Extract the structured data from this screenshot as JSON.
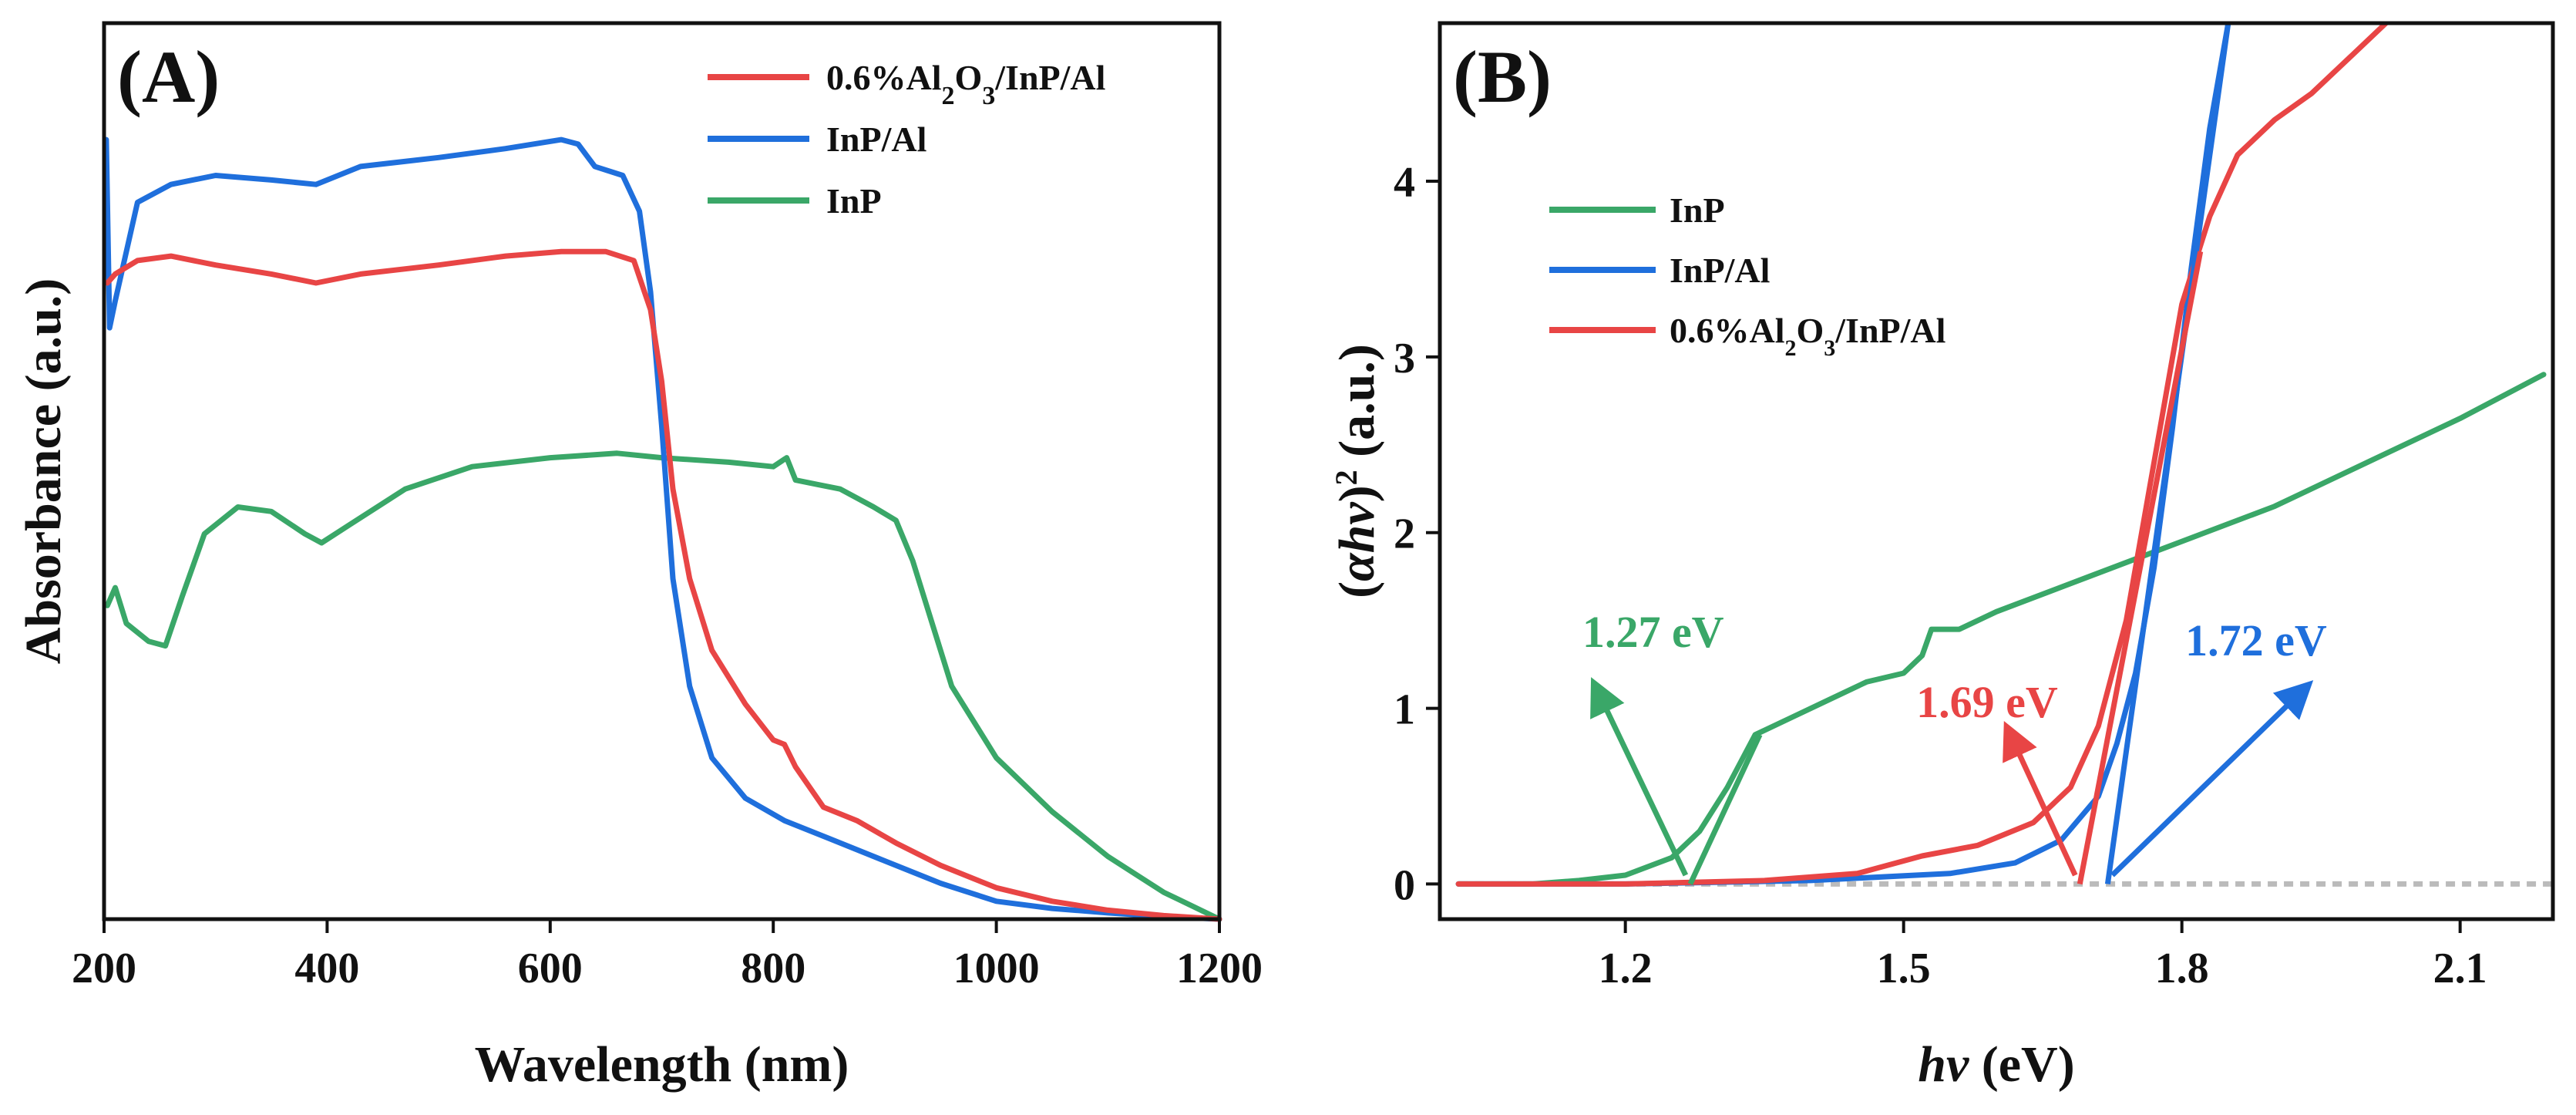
{
  "chart_data": [
    {
      "panel_label": "(A)",
      "type": "line",
      "xlabel": "Wavelength (nm)",
      "ylabel": "Absorbance (a.u.)",
      "xlim": [
        200,
        1200
      ],
      "ylim": [
        0,
        10
      ],
      "xticks": [
        200,
        400,
        600,
        800,
        1000,
        1200
      ],
      "yticks": [],
      "legend_position": "top-right",
      "series": [
        {
          "name": "0.6%Al2O3/InP/Al",
          "legend_html": "0.6%Al<tspan baseline-shift=\"sub\" font-size=\"34\">2</tspan>O<tspan baseline-shift=\"sub\" font-size=\"34\">3</tspan>/InP/Al",
          "color": "#e84545",
          "points": [
            [
              203,
              7.1
            ],
            [
              210,
              7.2
            ],
            [
              230,
              7.35
            ],
            [
              260,
              7.4
            ],
            [
              300,
              7.3
            ],
            [
              350,
              7.2
            ],
            [
              390,
              7.1
            ],
            [
              430,
              7.2
            ],
            [
              500,
              7.3
            ],
            [
              560,
              7.4
            ],
            [
              610,
              7.45
            ],
            [
              650,
              7.45
            ],
            [
              675,
              7.35
            ],
            [
              690,
              6.8
            ],
            [
              700,
              6.0
            ],
            [
              710,
              4.8
            ],
            [
              725,
              3.8
            ],
            [
              745,
              3.0
            ],
            [
              775,
              2.4
            ],
            [
              800,
              2.0
            ],
            [
              810,
              1.95
            ],
            [
              820,
              1.7
            ],
            [
              845,
              1.25
            ],
            [
              875,
              1.1
            ],
            [
              910,
              0.85
            ],
            [
              950,
              0.6
            ],
            [
              1000,
              0.35
            ],
            [
              1050,
              0.2
            ],
            [
              1100,
              0.1
            ],
            [
              1150,
              0.04
            ],
            [
              1200,
              0.0
            ]
          ]
        },
        {
          "name": "InP/Al",
          "legend_html": "InP/Al",
          "color": "#1f6fdc",
          "points": [
            [
              202,
              8.7
            ],
            [
              205,
              6.6
            ],
            [
              210,
              6.9
            ],
            [
              230,
              8.0
            ],
            [
              260,
              8.2
            ],
            [
              300,
              8.3
            ],
            [
              350,
              8.25
            ],
            [
              390,
              8.2
            ],
            [
              430,
              8.4
            ],
            [
              500,
              8.5
            ],
            [
              560,
              8.6
            ],
            [
              610,
              8.7
            ],
            [
              625,
              8.65
            ],
            [
              640,
              8.4
            ],
            [
              665,
              8.3
            ],
            [
              680,
              7.9
            ],
            [
              690,
              7.0
            ],
            [
              700,
              5.5
            ],
            [
              710,
              3.8
            ],
            [
              725,
              2.6
            ],
            [
              745,
              1.8
            ],
            [
              775,
              1.35
            ],
            [
              810,
              1.1
            ],
            [
              850,
              0.9
            ],
            [
              900,
              0.65
            ],
            [
              950,
              0.4
            ],
            [
              1000,
              0.2
            ],
            [
              1050,
              0.12
            ],
            [
              1100,
              0.07
            ],
            [
              1150,
              0.03
            ],
            [
              1200,
              0.0
            ]
          ]
        },
        {
          "name": "InP",
          "legend_html": "InP",
          "color": "#3aa768",
          "points": [
            [
              203,
              3.5
            ],
            [
              210,
              3.7
            ],
            [
              220,
              3.3
            ],
            [
              240,
              3.1
            ],
            [
              255,
              3.05
            ],
            [
              270,
              3.6
            ],
            [
              290,
              4.3
            ],
            [
              320,
              4.6
            ],
            [
              350,
              4.55
            ],
            [
              380,
              4.3
            ],
            [
              395,
              4.2
            ],
            [
              420,
              4.4
            ],
            [
              470,
              4.8
            ],
            [
              530,
              5.05
            ],
            [
              600,
              5.15
            ],
            [
              660,
              5.2
            ],
            [
              700,
              5.15
            ],
            [
              760,
              5.1
            ],
            [
              800,
              5.05
            ],
            [
              812,
              5.15
            ],
            [
              820,
              4.9
            ],
            [
              840,
              4.85
            ],
            [
              860,
              4.8
            ],
            [
              890,
              4.6
            ],
            [
              910,
              4.45
            ],
            [
              925,
              4.0
            ],
            [
              945,
              3.2
            ],
            [
              960,
              2.6
            ],
            [
              1000,
              1.8
            ],
            [
              1050,
              1.2
            ],
            [
              1100,
              0.7
            ],
            [
              1150,
              0.3
            ],
            [
              1200,
              0.0
            ]
          ]
        }
      ]
    },
    {
      "panel_label": "(B)",
      "type": "line",
      "xlabel_italic": "hv",
      "xlabel_rest": " (eV)",
      "ylabel_html": "(<tspan font-style=\"italic\">αhv</tspan>)<tspan baseline-shift=\"super\" font-size=\"40\">2</tspan> (a.u.)",
      "xlim": [
        1.0,
        2.2
      ],
      "ylim": [
        -0.2,
        4.9
      ],
      "xticks": [
        1.2,
        1.5,
        1.8,
        2.1
      ],
      "xtick_labels": [
        "1.2",
        "1.5",
        "1.8",
        "2.1"
      ],
      "yticks": [
        0,
        1,
        2,
        3,
        4
      ],
      "legend_position": "top-left",
      "series": [
        {
          "name": "InP",
          "legend_html": "InP",
          "color": "#3aa768",
          "points": [
            [
              1.02,
              0.0
            ],
            [
              1.1,
              0.0
            ],
            [
              1.15,
              0.02
            ],
            [
              1.2,
              0.05
            ],
            [
              1.25,
              0.15
            ],
            [
              1.28,
              0.3
            ],
            [
              1.31,
              0.55
            ],
            [
              1.34,
              0.85
            ],
            [
              1.38,
              0.95
            ],
            [
              1.42,
              1.05
            ],
            [
              1.46,
              1.15
            ],
            [
              1.5,
              1.2
            ],
            [
              1.52,
              1.3
            ],
            [
              1.53,
              1.45
            ],
            [
              1.56,
              1.45
            ],
            [
              1.6,
              1.55
            ],
            [
              1.7,
              1.75
            ],
            [
              1.8,
              1.95
            ],
            [
              1.9,
              2.15
            ],
            [
              2.0,
              2.4
            ],
            [
              2.1,
              2.65
            ],
            [
              2.19,
              2.9
            ]
          ]
        },
        {
          "name": "InP/Al",
          "legend_html": "InP/Al",
          "color": "#1f6fdc",
          "points": [
            [
              1.02,
              0.0
            ],
            [
              1.2,
              0.0
            ],
            [
              1.4,
              0.02
            ],
            [
              1.55,
              0.06
            ],
            [
              1.62,
              0.12
            ],
            [
              1.67,
              0.25
            ],
            [
              1.71,
              0.5
            ],
            [
              1.73,
              0.8
            ],
            [
              1.75,
              1.2
            ],
            [
              1.77,
              1.8
            ],
            [
              1.79,
              2.6
            ],
            [
              1.81,
              3.5
            ],
            [
              1.83,
              4.3
            ],
            [
              1.85,
              4.9
            ]
          ]
        },
        {
          "name": "0.6%Al2O3/InP/Al",
          "legend_html": "0.6%Al<tspan baseline-shift=\"sub\" font-size=\"30\">2</tspan>O<tspan baseline-shift=\"sub\" font-size=\"30\">3</tspan>/InP/Al",
          "color": "#e84545",
          "points": [
            [
              1.02,
              0.0
            ],
            [
              1.2,
              0.0
            ],
            [
              1.35,
              0.02
            ],
            [
              1.45,
              0.06
            ],
            [
              1.52,
              0.16
            ],
            [
              1.58,
              0.22
            ],
            [
              1.64,
              0.35
            ],
            [
              1.68,
              0.55
            ],
            [
              1.71,
              0.9
            ],
            [
              1.74,
              1.5
            ],
            [
              1.77,
              2.4
            ],
            [
              1.8,
              3.3
            ],
            [
              1.83,
              3.8
            ],
            [
              1.86,
              4.15
            ],
            [
              1.9,
              4.35
            ],
            [
              1.94,
              4.5
            ],
            [
              1.98,
              4.7
            ],
            [
              2.02,
              4.9
            ]
          ]
        }
      ],
      "tangents": [
        {
          "color": "#3aa768",
          "from": [
            1.27,
            0.0
          ],
          "to": [
            1.345,
            0.85
          ]
        },
        {
          "color": "#1f6fdc",
          "from": [
            1.72,
            0.0
          ],
          "to": [
            1.85,
            4.9
          ]
        },
        {
          "color": "#e84545",
          "from": [
            1.69,
            0.0
          ],
          "to": [
            1.82,
            3.6
          ]
        }
      ],
      "baseline": {
        "y": 0,
        "color": "#bbbbbb"
      },
      "annotations": [
        {
          "text": "1.27 eV",
          "color": "#3aa768",
          "x": 1.23,
          "y": 1.35,
          "arrow_from": [
            1.265,
            0.05
          ],
          "arrow_to": [
            1.17,
            1.1
          ]
        },
        {
          "text": "1.69 eV",
          "color": "#e84545",
          "x": 1.59,
          "y": 0.95,
          "arrow_from": [
            1.685,
            0.05
          ],
          "arrow_to": [
            1.615,
            0.85
          ]
        },
        {
          "text": "1.72 eV",
          "color": "#1f6fdc",
          "x": 1.88,
          "y": 1.3,
          "arrow_from": [
            1.725,
            0.05
          ],
          "arrow_to": [
            1.93,
            1.1
          ]
        }
      ]
    }
  ]
}
